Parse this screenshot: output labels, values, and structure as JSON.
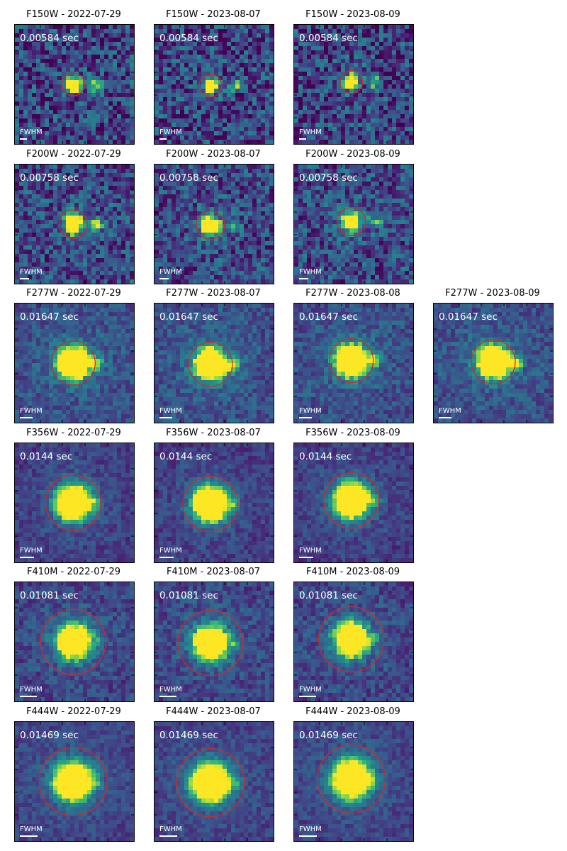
{
  "figure": {
    "rows": [
      {
        "filter": "F150W",
        "exptime": "0.00584 sec",
        "fwhm_label": "FWHM",
        "panels": [
          {
            "title": "F150W - 2022-07-29"
          },
          {
            "title": "F150W - 2023-08-07"
          },
          {
            "title": "F150W - 2023-08-09"
          }
        ]
      },
      {
        "filter": "F200W",
        "exptime": "0.00758 sec",
        "fwhm_label": "FWHM",
        "panels": [
          {
            "title": "F200W - 2022-07-29"
          },
          {
            "title": "F200W - 2023-08-07"
          },
          {
            "title": "F200W - 2023-08-09"
          }
        ]
      },
      {
        "filter": "F277W",
        "exptime": "0.01647 sec",
        "fwhm_label": "FWHM",
        "panels": [
          {
            "title": "F277W - 2022-07-29"
          },
          {
            "title": "F277W - 2023-08-07"
          },
          {
            "title": "F277W - 2023-08-08"
          },
          {
            "title": "F277W - 2023-08-09"
          }
        ]
      },
      {
        "filter": "F356W",
        "exptime": "0.0144 sec",
        "fwhm_label": "FWHM",
        "panels": [
          {
            "title": "F356W - 2022-07-29"
          },
          {
            "title": "F356W - 2023-08-07"
          },
          {
            "title": "F356W - 2023-08-09"
          }
        ]
      },
      {
        "filter": "F410M",
        "exptime": "0.01081 sec",
        "fwhm_label": "FWHM",
        "panels": [
          {
            "title": "F410M - 2022-07-29"
          },
          {
            "title": "F410M - 2023-08-07"
          },
          {
            "title": "F410M - 2023-08-09"
          }
        ]
      },
      {
        "filter": "F444W",
        "exptime": "0.01469 sec",
        "fwhm_label": "FWHM",
        "panels": [
          {
            "title": "F444W - 2022-07-29"
          },
          {
            "title": "F444W - 2023-08-07"
          },
          {
            "title": "F444W - 2023-08-09"
          }
        ]
      }
    ],
    "colors": {
      "colormap": "viridis",
      "aperture_circle": "#d62728",
      "overlay_text": "#ffffff",
      "frame": "#000000"
    }
  }
}
